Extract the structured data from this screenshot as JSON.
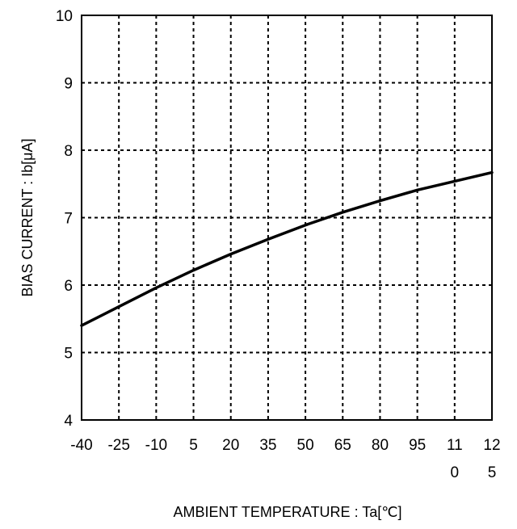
{
  "chart_data": {
    "type": "line",
    "title": "",
    "xlabel": "AMBIENT TEMPERATURE : Ta[℃]",
    "ylabel": "BIAS CURRENT : Ib[μA]",
    "xlim": [
      -40,
      125
    ],
    "ylim": [
      4,
      10
    ],
    "grid": true,
    "legend": "none",
    "x_ticks": [
      -40,
      -25,
      -10,
      5,
      20,
      35,
      50,
      65,
      80,
      95,
      110,
      125
    ],
    "x_tick_labels": [
      [
        "-40"
      ],
      [
        "-25"
      ],
      [
        "-10"
      ],
      [
        "5"
      ],
      [
        "20"
      ],
      [
        "35"
      ],
      [
        "50"
      ],
      [
        "65"
      ],
      [
        "80"
      ],
      [
        "95"
      ],
      [
        "11",
        "0"
      ],
      [
        "12",
        "5"
      ]
    ],
    "y_ticks": [
      4,
      5,
      6,
      7,
      8,
      9,
      10
    ],
    "y_tick_labels": [
      "4",
      "5",
      "6",
      "7",
      "8",
      "9",
      "10"
    ],
    "series": [
      {
        "color": "#000000",
        "x": [
          -40,
          -25,
          -10,
          5,
          20,
          35,
          50,
          65,
          80,
          95,
          110,
          125
        ],
        "y": [
          5.4,
          5.68,
          5.96,
          6.22,
          6.46,
          6.68,
          6.89,
          7.08,
          7.25,
          7.41,
          7.54,
          7.67
        ]
      }
    ]
  }
}
